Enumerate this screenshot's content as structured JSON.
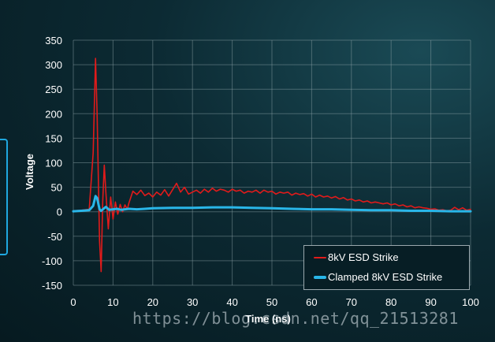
{
  "chart_data": {
    "type": "line",
    "title": "",
    "xlabel": "Time (ns)",
    "ylabel": "Voltage",
    "xlim": [
      0,
      100
    ],
    "ylim": [
      -150,
      350
    ],
    "x_ticks": [
      "0",
      "10",
      "20",
      "30",
      "40",
      "50",
      "60",
      "70",
      "80",
      "90",
      "100"
    ],
    "y_ticks": [
      "350",
      "300",
      "250",
      "200",
      "150",
      "100",
      "50",
      "0",
      "-50",
      "-100",
      "-150"
    ],
    "grid": true,
    "legend_position": "bottom-right",
    "series": [
      {
        "name": "8kV ESD Strike",
        "color": "#e01b1b",
        "x": [
          0,
          2,
          4,
          5,
          5.6,
          6,
          6.6,
          7,
          7.4,
          7.8,
          8.2,
          8.8,
          9.4,
          10,
          10.6,
          11.2,
          11.8,
          12.4,
          13,
          13.6,
          14,
          15,
          16,
          17,
          18,
          19,
          20,
          21,
          22,
          23,
          24,
          25,
          26,
          27,
          28,
          29,
          30,
          31,
          32,
          33,
          34,
          35,
          36,
          37,
          38,
          39,
          40,
          41,
          42,
          43,
          44,
          45,
          46,
          47,
          48,
          49,
          50,
          51,
          52,
          53,
          54,
          55,
          56,
          57,
          58,
          59,
          60,
          61,
          62,
          63,
          64,
          65,
          66,
          67,
          68,
          69,
          70,
          71,
          72,
          73,
          74,
          75,
          76,
          77,
          78,
          79,
          80,
          81,
          82,
          83,
          84,
          85,
          86,
          87,
          88,
          89,
          90,
          91,
          92,
          93,
          94,
          95,
          96,
          97,
          98,
          99,
          100
        ],
        "y": [
          2,
          3,
          5,
          120,
          313,
          200,
          -60,
          -122,
          20,
          95,
          40,
          -35,
          30,
          -15,
          20,
          -5,
          15,
          0,
          14,
          5,
          18,
          42,
          35,
          44,
          33,
          38,
          30,
          40,
          34,
          45,
          32,
          45,
          58,
          40,
          50,
          36,
          40,
          44,
          38,
          46,
          40,
          48,
          42,
          46,
          44,
          40,
          46,
          42,
          44,
          38,
          42,
          40,
          44,
          38,
          44,
          40,
          42,
          36,
          40,
          38,
          40,
          34,
          38,
          35,
          37,
          32,
          36,
          30,
          34,
          30,
          32,
          28,
          31,
          26,
          29,
          24,
          26,
          22,
          24,
          20,
          22,
          18,
          20,
          18,
          16,
          18,
          14,
          16,
          12,
          14,
          10,
          12,
          8,
          10,
          8,
          7,
          5,
          6,
          3,
          4,
          2,
          3,
          9,
          4,
          8,
          3,
          5
        ]
      },
      {
        "name": "Clamped 8kV ESD Strike",
        "color": "#29b6e8",
        "x": [
          0,
          2,
          4,
          5,
          5.6,
          6,
          6.6,
          7,
          7.6,
          8.2,
          9,
          10,
          11,
          12,
          14,
          16,
          18,
          20,
          25,
          30,
          35,
          40,
          45,
          50,
          55,
          60,
          65,
          70,
          75,
          80,
          85,
          90,
          95,
          100
        ],
        "y": [
          1,
          2,
          3,
          12,
          32,
          28,
          5,
          2,
          6,
          10,
          4,
          5,
          6,
          4,
          6,
          5,
          6,
          7,
          8,
          8,
          9,
          9,
          8,
          7,
          6,
          5,
          5,
          4,
          3,
          3,
          2,
          2,
          1,
          1
        ]
      }
    ]
  },
  "watermark": "https://blog.csdn.net/qq_21513281"
}
